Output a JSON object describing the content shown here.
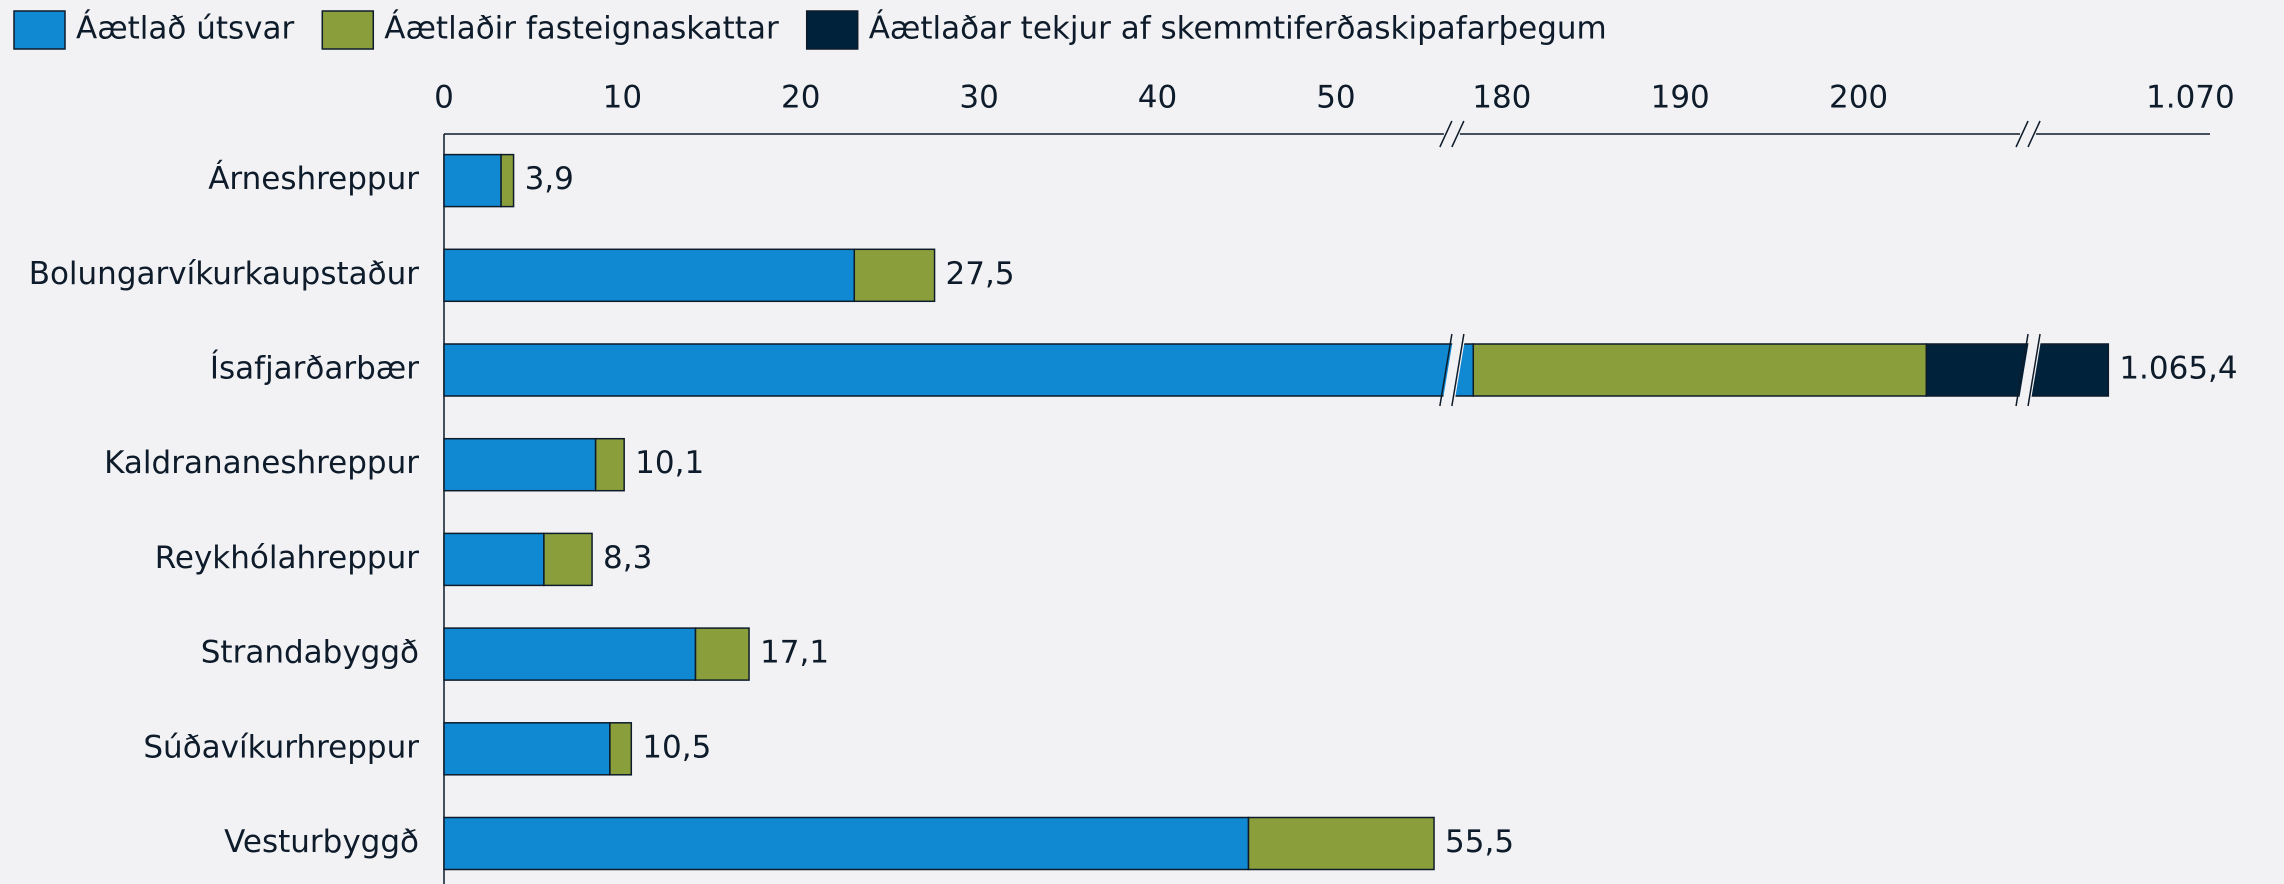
{
  "chart_data": {
    "type": "stacked-bar-horizontal",
    "categories": [
      "Árneshreppur",
      "Bolungarvíkurkaupstaður",
      "Ísafjarðarbær",
      "Kaldrananeshreppur",
      "Reykhólahreppur",
      "Strandabyggð",
      "Súðavíkurhreppur",
      "Vesturbyggð"
    ],
    "series": [
      {
        "name": "Áætlað útsvar",
        "color": "#1189d2",
        "values": [
          3.2,
          23.0,
          178.4,
          8.5,
          5.6,
          14.1,
          9.3,
          45.1
        ]
      },
      {
        "name": "Áætlaðir fasteignaskattar",
        "color": "#8a9e3c",
        "values": [
          0.7,
          4.5,
          25.4,
          1.6,
          2.7,
          3.0,
          1.2,
          10.4
        ]
      },
      {
        "name": "Áætlaðar tekjur af skemmtiferðaskipafarþegum",
        "color": "#00223a",
        "values": [
          null,
          null,
          861.6,
          null,
          null,
          null,
          null,
          null
        ]
      }
    ],
    "totals": [
      3.9,
      27.5,
      1065.4,
      10.1,
      8.3,
      17.1,
      10.5,
      55.5
    ],
    "total_labels": [
      "3,9",
      "27,5",
      "1.065,4",
      "10,1",
      "8,3",
      "17,1",
      "10,5",
      "55,5"
    ],
    "xlim": [
      0,
      1071.1
    ],
    "axis_breaks": [
      [
        56.5,
        177.2
      ],
      [
        209.5,
        1060.9
      ]
    ],
    "xticks": [
      0,
      10,
      20,
      30,
      40,
      50,
      180,
      190,
      200,
      {
        "value": 1070,
        "label": "1.070"
      }
    ],
    "legend": "top-left"
  }
}
